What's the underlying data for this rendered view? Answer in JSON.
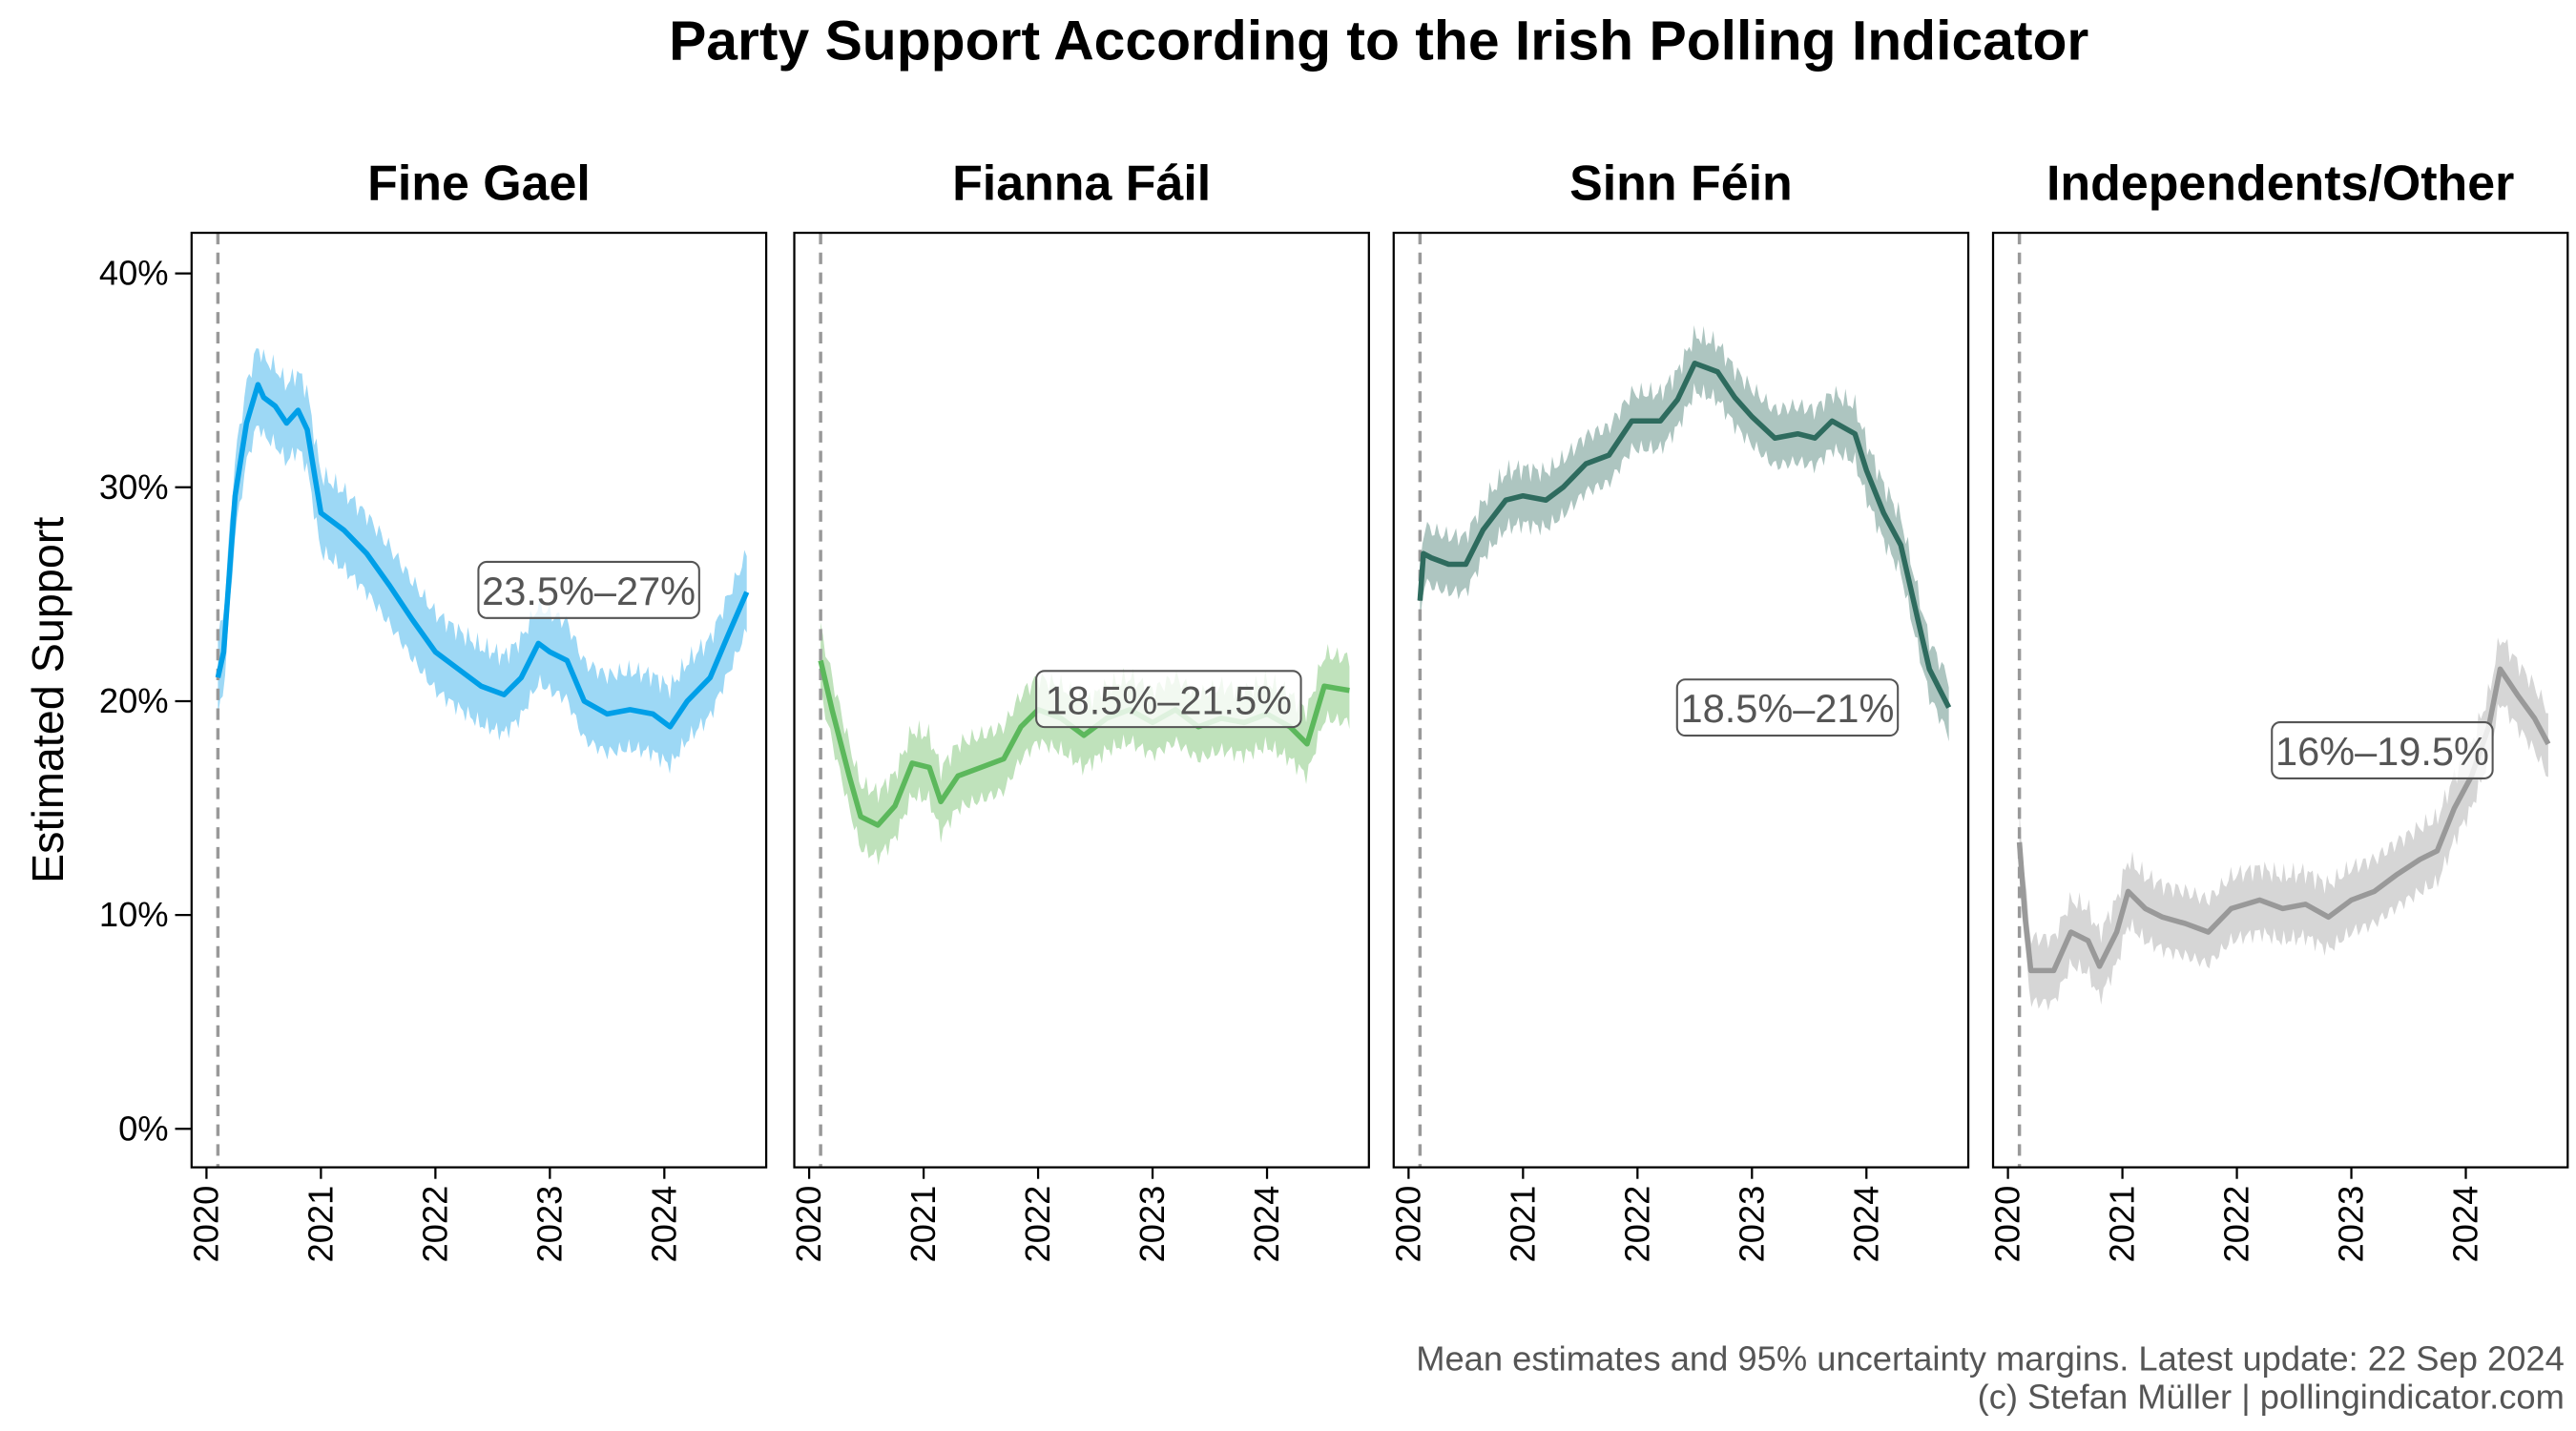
{
  "chart_data": {
    "type": "line",
    "title": "Party Support According to the Irish Polling Indicator",
    "ylabel": "Estimated Support",
    "xlabel": "",
    "ylim": [
      -1.8,
      41.9
    ],
    "xlim": [
      2019.87,
      2024.89
    ],
    "yticks": [
      0,
      10,
      20,
      30,
      40
    ],
    "ytick_labels": [
      "0%",
      "10%",
      "20%",
      "30%",
      "40%"
    ],
    "xticks": [
      2020,
      2021,
      2022,
      2023,
      2024
    ],
    "xtick_labels": [
      "2020",
      "2021",
      "2022",
      "2023",
      "2024"
    ],
    "grid": false,
    "reference_line_x": 2020.1,
    "caption": [
      "Mean estimates and 95% uncertainty margins. Latest update: 22 Sep 2024",
      "(c) Stefan Müller | pollingindicator.com"
    ],
    "panels": [
      {
        "name": "Fine Gael",
        "color": "#009fe8",
        "band_color": "#9dd8f5",
        "range_label": "23.5%–27%",
        "label_at": [
          2023.34,
          25.2
        ],
        "margin": 1.8,
        "series": [
          [
            2020.1,
            21.1
          ],
          [
            2020.15,
            22.3
          ],
          [
            2020.25,
            29.6
          ],
          [
            2020.35,
            33
          ],
          [
            2020.45,
            34.8
          ],
          [
            2020.5,
            34.2
          ],
          [
            2020.6,
            33.8
          ],
          [
            2020.7,
            33
          ],
          [
            2020.8,
            33.6
          ],
          [
            2020.88,
            32.7
          ],
          [
            2020.95,
            30.4
          ],
          [
            2021.0,
            28.8
          ],
          [
            2021.2,
            28
          ],
          [
            2021.4,
            26.9
          ],
          [
            2021.6,
            25.4
          ],
          [
            2021.8,
            23.8
          ],
          [
            2022.0,
            22.3
          ],
          [
            2022.2,
            21.5
          ],
          [
            2022.4,
            20.7
          ],
          [
            2022.6,
            20.3
          ],
          [
            2022.75,
            21.1
          ],
          [
            2022.9,
            22.7
          ],
          [
            2023.0,
            22.3
          ],
          [
            2023.15,
            21.9
          ],
          [
            2023.3,
            20
          ],
          [
            2023.5,
            19.4
          ],
          [
            2023.7,
            19.6
          ],
          [
            2023.9,
            19.4
          ],
          [
            2024.05,
            18.8
          ],
          [
            2024.2,
            20
          ],
          [
            2024.4,
            21.1
          ],
          [
            2024.55,
            23
          ],
          [
            2024.72,
            25.1
          ]
        ]
      },
      {
        "name": "Fianna Fáil",
        "color": "#5cb85c",
        "band_color": "#bfe2bb",
        "range_label": "18.5%–21.5%",
        "label_at": [
          2023.14,
          20.1
        ],
        "margin": 1.5,
        "series": [
          [
            2020.1,
            21.9
          ],
          [
            2020.2,
            19.6
          ],
          [
            2020.35,
            16.5
          ],
          [
            2020.45,
            14.6
          ],
          [
            2020.6,
            14.2
          ],
          [
            2020.75,
            15.1
          ],
          [
            2020.9,
            17.1
          ],
          [
            2021.05,
            16.9
          ],
          [
            2021.15,
            15.3
          ],
          [
            2021.3,
            16.5
          ],
          [
            2021.5,
            16.9
          ],
          [
            2021.7,
            17.3
          ],
          [
            2021.85,
            18.8
          ],
          [
            2022.0,
            19.6
          ],
          [
            2022.2,
            19.2
          ],
          [
            2022.4,
            18.4
          ],
          [
            2022.6,
            19.2
          ],
          [
            2022.8,
            19.6
          ],
          [
            2023.0,
            19.0
          ],
          [
            2023.2,
            19.6
          ],
          [
            2023.4,
            18.8
          ],
          [
            2023.6,
            19.2
          ],
          [
            2023.8,
            19.0
          ],
          [
            2024.0,
            19.4
          ],
          [
            2024.2,
            18.8
          ],
          [
            2024.35,
            18
          ],
          [
            2024.5,
            20.7
          ],
          [
            2024.72,
            20.5
          ]
        ]
      },
      {
        "name": "Sinn Féin",
        "color": "#2e6b5e",
        "band_color": "#adc5c0",
        "range_label": "18.5%–21%",
        "label_at": [
          2023.31,
          19.7
        ],
        "margin": 1.3,
        "series": [
          [
            2020.1,
            24.7
          ],
          [
            2020.13,
            26.9
          ],
          [
            2020.2,
            26.7
          ],
          [
            2020.35,
            26.4
          ],
          [
            2020.5,
            26.4
          ],
          [
            2020.65,
            28
          ],
          [
            2020.85,
            29.4
          ],
          [
            2021.0,
            29.6
          ],
          [
            2021.2,
            29.4
          ],
          [
            2021.35,
            30
          ],
          [
            2021.55,
            31.1
          ],
          [
            2021.75,
            31.5
          ],
          [
            2021.95,
            33.1
          ],
          [
            2022.2,
            33.1
          ],
          [
            2022.35,
            34.1
          ],
          [
            2022.5,
            35.8
          ],
          [
            2022.7,
            35.4
          ],
          [
            2022.85,
            34.2
          ],
          [
            2023.0,
            33.3
          ],
          [
            2023.2,
            32.3
          ],
          [
            2023.4,
            32.5
          ],
          [
            2023.55,
            32.3
          ],
          [
            2023.7,
            33.1
          ],
          [
            2023.9,
            32.5
          ],
          [
            2024.0,
            30.8
          ],
          [
            2024.15,
            28.8
          ],
          [
            2024.3,
            27.3
          ],
          [
            2024.45,
            23.8
          ],
          [
            2024.55,
            21.5
          ],
          [
            2024.72,
            19.7
          ]
        ]
      },
      {
        "name": "Independents/Other",
        "color": "#999999",
        "band_color": "#d6d6d6",
        "range_label": "16%–19.5%",
        "label_at": [
          2023.27,
          17.7
        ],
        "margin": 1.5,
        "series": [
          [
            2020.1,
            13.4
          ],
          [
            2020.15,
            9.9
          ],
          [
            2020.2,
            7.4
          ],
          [
            2020.4,
            7.4
          ],
          [
            2020.55,
            9.2
          ],
          [
            2020.7,
            8.8
          ],
          [
            2020.8,
            7.6
          ],
          [
            2020.95,
            9.2
          ],
          [
            2021.05,
            11.1
          ],
          [
            2021.2,
            10.3
          ],
          [
            2021.35,
            9.9
          ],
          [
            2021.55,
            9.6
          ],
          [
            2021.75,
            9.2
          ],
          [
            2021.95,
            10.3
          ],
          [
            2022.2,
            10.7
          ],
          [
            2022.4,
            10.3
          ],
          [
            2022.6,
            10.5
          ],
          [
            2022.8,
            9.9
          ],
          [
            2023.0,
            10.7
          ],
          [
            2023.2,
            11.1
          ],
          [
            2023.4,
            11.9
          ],
          [
            2023.6,
            12.6
          ],
          [
            2023.75,
            13
          ],
          [
            2023.9,
            15
          ],
          [
            2024.05,
            16.5
          ],
          [
            2024.2,
            18.8
          ],
          [
            2024.3,
            21.5
          ],
          [
            2024.45,
            20.3
          ],
          [
            2024.6,
            19.2
          ],
          [
            2024.72,
            18
          ]
        ]
      }
    ]
  }
}
